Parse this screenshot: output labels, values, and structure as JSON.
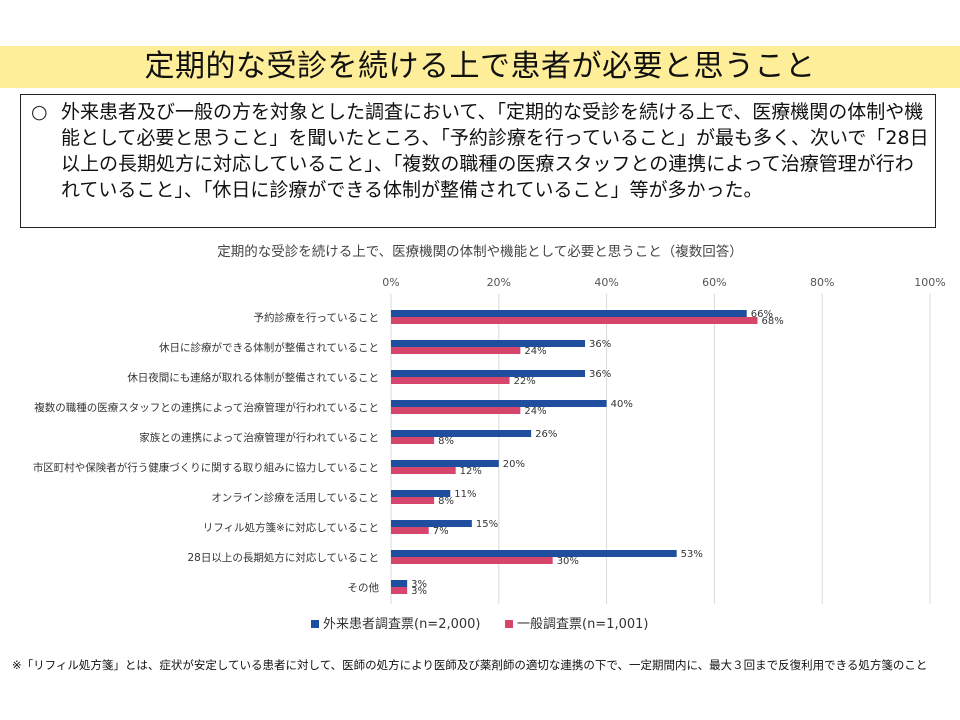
{
  "title": "定期的な受診を続ける上で患者が必要と思うこと",
  "summary": {
    "bullet": "○",
    "text": "外来患者及び一般の方を対象とした調査において、「定期的な受診を続ける上で、医療機関の体制や機能として必要と思うこと」を聞いたところ、「予約診療を行っていること」が最も多く、次いで「28日以上の長期処方に対応していること」、「複数の職種の医療スタッフとの連携によって治療管理が行われていること」、「休日に診療ができる体制が整備されていること」等が多かった。"
  },
  "footnote": "※「リフィル処方箋」とは、症状が安定している患者に対して、医師の処方により医師及び薬剤師の適切な連携の下で、一定期間内に、最大３回まで反復利用できる処方箋のこと",
  "colors": {
    "series1": "#1f4e9f",
    "series2": "#d6456b",
    "title_band": "#ffee99",
    "grid": "#d9d9d9"
  },
  "chart_data": {
    "type": "bar",
    "orientation": "horizontal",
    "title": "定期的な受診を続ける上で、医療機関の体制や機能として必要と思うこと（複数回答）",
    "xlim": [
      0,
      100
    ],
    "ticks": [
      "0%",
      "20%",
      "40%",
      "60%",
      "80%",
      "100%"
    ],
    "tick_values": [
      0,
      20,
      40,
      60,
      80,
      100
    ],
    "grid": true,
    "legend_position": "bottom",
    "categories": [
      "予約診療を行っていること",
      "休日に診療ができる体制が整備されていること",
      "休日夜間にも連絡が取れる体制が整備されていること",
      "複数の職種の医療スタッフとの連携によって治療管理が行われていること",
      "家族との連携によって治療管理が行われていること",
      "市区町村や保険者が行う健康づくりに関する取り組みに協力していること",
      "オンライン診療を活用していること",
      "リフィル処方箋※に対応していること",
      "28日以上の長期処方に対応していること",
      "その他"
    ],
    "series": [
      {
        "name": "外来患者調査票(n=2,000)",
        "values": [
          66,
          36,
          36,
          40,
          26,
          20,
          11,
          15,
          53,
          3
        ],
        "labels": [
          "66%",
          "36%",
          "36%",
          "40%",
          "26%",
          "20%",
          "11%",
          "15%",
          "53%",
          "3%"
        ]
      },
      {
        "name": "一般調査票(n=1,001)",
        "values": [
          68,
          24,
          22,
          24,
          8,
          12,
          8,
          7,
          30,
          3
        ],
        "labels": [
          "68%",
          "24%",
          "22%",
          "24%",
          "8%",
          "12%",
          "8%",
          "7%",
          "30%",
          "3%"
        ]
      }
    ]
  }
}
